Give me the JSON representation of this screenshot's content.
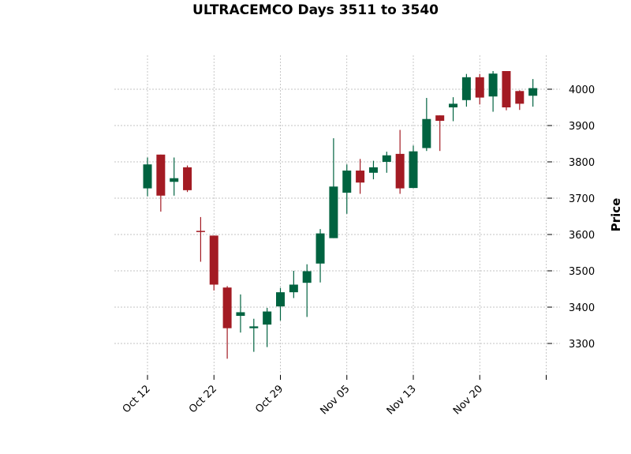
{
  "chart_data": {
    "type": "candlestick",
    "title": "ULTRACEMCO Days 3511 to 3540",
    "xlabel": "",
    "ylabel": "Price",
    "ylim": [
      3220,
      4090
    ],
    "yticks": [
      3300,
      3400,
      3500,
      3600,
      3700,
      3800,
      3900,
      4000
    ],
    "xtick_labels": [
      {
        "index": 0,
        "label": "Oct 12"
      },
      {
        "index": 5,
        "label": "Oct 22"
      },
      {
        "index": 10,
        "label": "Oct 29"
      },
      {
        "index": 15,
        "label": "Nov 05"
      },
      {
        "index": 20,
        "label": "Nov 13"
      },
      {
        "index": 25,
        "label": "Nov 20"
      },
      {
        "index": 30,
        "label": ""
      }
    ],
    "grid": true,
    "colors": {
      "up": "#006340",
      "down": "#a31b23",
      "grid": "#b0b0b0"
    },
    "candles": [
      {
        "open": 3727,
        "high": 3812,
        "low": 3705,
        "close": 3793
      },
      {
        "open": 3820,
        "high": 3820,
        "low": 3663,
        "close": 3707
      },
      {
        "open": 3745,
        "high": 3812,
        "low": 3707,
        "close": 3755
      },
      {
        "open": 3785,
        "high": 3790,
        "low": 3717,
        "close": 3722
      },
      {
        "open": 3610,
        "high": 3648,
        "low": 3525,
        "close": 3608
      },
      {
        "open": 3597,
        "high": 3597,
        "low": 3446,
        "close": 3462
      },
      {
        "open": 3454,
        "high": 3458,
        "low": 3258,
        "close": 3342
      },
      {
        "open": 3376,
        "high": 3435,
        "low": 3330,
        "close": 3386
      },
      {
        "open": 3342,
        "high": 3368,
        "low": 3277,
        "close": 3347
      },
      {
        "open": 3352,
        "high": 3398,
        "low": 3290,
        "close": 3388
      },
      {
        "open": 3402,
        "high": 3453,
        "low": 3363,
        "close": 3441
      },
      {
        "open": 3441,
        "high": 3500,
        "low": 3425,
        "close": 3462
      },
      {
        "open": 3467,
        "high": 3518,
        "low": 3373,
        "close": 3499
      },
      {
        "open": 3520,
        "high": 3615,
        "low": 3468,
        "close": 3603
      },
      {
        "open": 3590,
        "high": 3865,
        "low": 3590,
        "close": 3732
      },
      {
        "open": 3715,
        "high": 3793,
        "low": 3657,
        "close": 3776
      },
      {
        "open": 3776,
        "high": 3808,
        "low": 3712,
        "close": 3743
      },
      {
        "open": 3770,
        "high": 3803,
        "low": 3752,
        "close": 3785
      },
      {
        "open": 3800,
        "high": 3828,
        "low": 3770,
        "close": 3818
      },
      {
        "open": 3822,
        "high": 3888,
        "low": 3712,
        "close": 3727
      },
      {
        "open": 3728,
        "high": 3845,
        "low": 3728,
        "close": 3829
      },
      {
        "open": 3838,
        "high": 3976,
        "low": 3830,
        "close": 3918
      },
      {
        "open": 3928,
        "high": 3928,
        "low": 3830,
        "close": 3913
      },
      {
        "open": 3950,
        "high": 3978,
        "low": 3912,
        "close": 3960
      },
      {
        "open": 3970,
        "high": 4042,
        "low": 3952,
        "close": 4033
      },
      {
        "open": 4033,
        "high": 4042,
        "low": 3958,
        "close": 3977
      },
      {
        "open": 3980,
        "high": 4050,
        "low": 3938,
        "close": 4043
      },
      {
        "open": 4050,
        "high": 4050,
        "low": 3942,
        "close": 3950
      },
      {
        "open": 3995,
        "high": 3997,
        "low": 3943,
        "close": 3960
      },
      {
        "open": 3982,
        "high": 4028,
        "low": 3952,
        "close": 4003
      }
    ]
  }
}
